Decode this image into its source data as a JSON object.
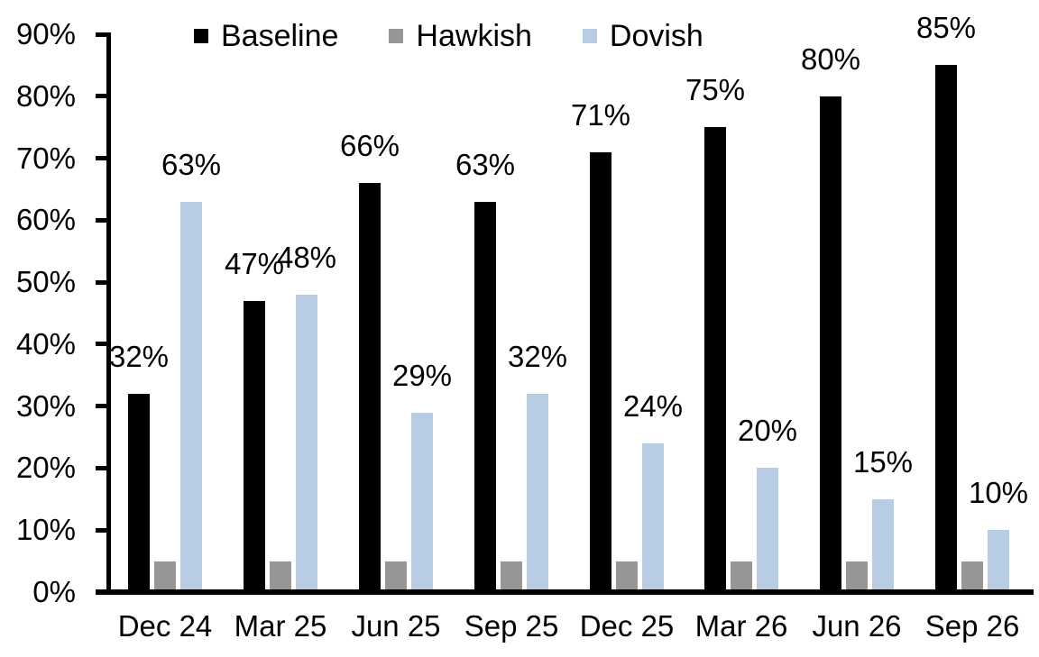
{
  "chart_data": {
    "type": "bar",
    "title": "",
    "xlabel": "",
    "ylabel": "",
    "categories": [
      "Dec 24",
      "Mar 25",
      "Jun 25",
      "Sep 25",
      "Dec 25",
      "Mar 26",
      "Jun 26",
      "Sep 26"
    ],
    "series": [
      {
        "name": "Baseline",
        "color": "#000000",
        "values": [
          32,
          47,
          66,
          63,
          71,
          75,
          80,
          85
        ],
        "data_labels": [
          "32%",
          "47%",
          "66%",
          "63%",
          "71%",
          "75%",
          "80%",
          "85%"
        ]
      },
      {
        "name": "Hawkish",
        "color": "#969696",
        "values": [
          5,
          5,
          5,
          5,
          5,
          5,
          5,
          5
        ],
        "data_labels": [
          "",
          "",
          "",
          "",
          "",
          "",
          "",
          ""
        ]
      },
      {
        "name": "Dovish",
        "color": "#B8CCE4",
        "values": [
          63,
          48,
          29,
          32,
          24,
          20,
          15,
          10
        ],
        "data_labels": [
          "63%",
          "48%",
          "29%",
          "32%",
          "24%",
          "20%",
          "15%",
          "10%"
        ]
      }
    ],
    "ylim": [
      0,
      90
    ],
    "ytick_step": 10,
    "ytick_labels": [
      "0%",
      "10%",
      "20%",
      "30%",
      "40%",
      "50%",
      "60%",
      "70%",
      "80%",
      "90%"
    ],
    "grid": false,
    "legend_position": "top",
    "axis_color": "#000000",
    "background_color": "#FFFFFF"
  }
}
